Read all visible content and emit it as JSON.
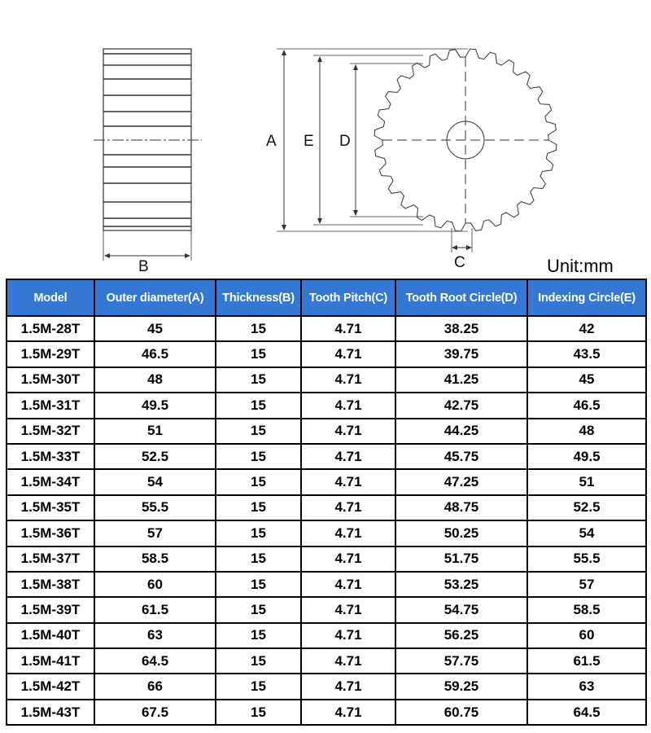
{
  "diagram": {
    "labels": {
      "a": "A",
      "b": "B",
      "c": "C",
      "d": "D",
      "e": "E"
    }
  },
  "unit_label": "Unit:mm",
  "table": {
    "header_color": "#3478d4",
    "columns": [
      "Model",
      "Outer diameter(A)",
      "Thickness(B)",
      "Tooth Pitch(C)",
      "Tooth Root Circle(D)",
      "Indexing Circle(E)"
    ],
    "rows": [
      [
        "1.5M-28T",
        "45",
        "15",
        "4.71",
        "38.25",
        "42"
      ],
      [
        "1.5M-29T",
        "46.5",
        "15",
        "4.71",
        "39.75",
        "43.5"
      ],
      [
        "1.5M-30T",
        "48",
        "15",
        "4.71",
        "41.25",
        "45"
      ],
      [
        "1.5M-31T",
        "49.5",
        "15",
        "4.71",
        "42.75",
        "46.5"
      ],
      [
        "1.5M-32T",
        "51",
        "15",
        "4.71",
        "44.25",
        "48"
      ],
      [
        "1.5M-33T",
        "52.5",
        "15",
        "4.71",
        "45.75",
        "49.5"
      ],
      [
        "1.5M-34T",
        "54",
        "15",
        "4.71",
        "47.25",
        "51"
      ],
      [
        "1.5M-35T",
        "55.5",
        "15",
        "4.71",
        "48.75",
        "52.5"
      ],
      [
        "1.5M-36T",
        "57",
        "15",
        "4.71",
        "50.25",
        "54"
      ],
      [
        "1.5M-37T",
        "58.5",
        "15",
        "4.71",
        "51.75",
        "55.5"
      ],
      [
        "1.5M-38T",
        "60",
        "15",
        "4.71",
        "53.25",
        "57"
      ],
      [
        "1.5M-39T",
        "61.5",
        "15",
        "4.71",
        "54.75",
        "58.5"
      ],
      [
        "1.5M-40T",
        "63",
        "15",
        "4.71",
        "56.25",
        "60"
      ],
      [
        "1.5M-41T",
        "64.5",
        "15",
        "4.71",
        "57.75",
        "61.5"
      ],
      [
        "1.5M-42T",
        "66",
        "15",
        "4.71",
        "59.25",
        "63"
      ],
      [
        "1.5M-43T",
        "67.5",
        "15",
        "4.71",
        "60.75",
        "64.5"
      ]
    ]
  }
}
